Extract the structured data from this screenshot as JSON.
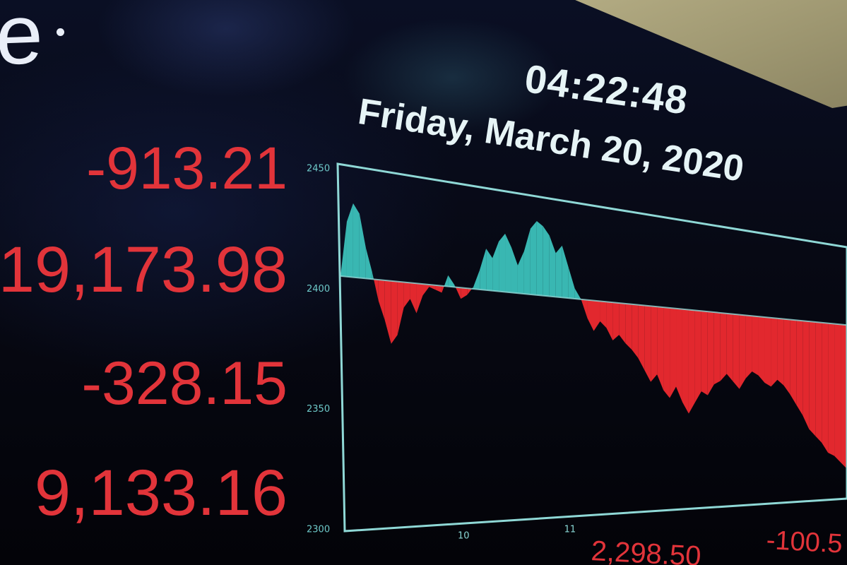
{
  "logo_fragment": "e",
  "clock": "04:22:48",
  "date": "Friday, March 20, 2020",
  "stats": {
    "change_1": "-913.21",
    "value_1": "19,173.98",
    "change_2": "-328.15",
    "value_2": "9,133.16"
  },
  "bottom_values": {
    "value_a": "2,298.50",
    "value_b": "-100.5"
  },
  "colors": {
    "positive_fill": "#39b7b2",
    "negative_fill": "#e2282e",
    "frame": "#8fd8d6",
    "axis_text": "#6ec9c9",
    "text_red": "#e2343a",
    "text_white": "#e6f4f6"
  },
  "chart_data": {
    "type": "area",
    "title": "",
    "xlabel": "",
    "ylabel": "",
    "ylim": [
      2300,
      2450
    ],
    "baseline": 2405,
    "y_ticks": [
      "2450",
      "2400",
      "2350",
      "2300"
    ],
    "x_ticks": [
      "10",
      "11"
    ],
    "series": [
      {
        "values": [
          2405,
          2428,
          2436,
          2432,
          2418,
          2408,
          2396,
          2388,
          2378,
          2382,
          2394,
          2398,
          2392,
          2400,
          2404,
          2403,
          2402,
          2410,
          2406,
          2400,
          2402,
          2406,
          2414,
          2424,
          2420,
          2428,
          2432,
          2426,
          2418,
          2425,
          2436,
          2440,
          2438,
          2434,
          2426,
          2430,
          2420,
          2410,
          2405,
          2396,
          2390,
          2395,
          2392,
          2386,
          2389,
          2385,
          2382,
          2378,
          2372,
          2366,
          2370,
          2362,
          2358,
          2364,
          2356,
          2350,
          2356,
          2362,
          2360,
          2366,
          2368,
          2372,
          2368,
          2364,
          2370,
          2374,
          2372,
          2368,
          2366,
          2370,
          2367,
          2362,
          2356,
          2350,
          2342,
          2338,
          2334,
          2328,
          2326,
          2322,
          2318
        ]
      }
    ]
  }
}
